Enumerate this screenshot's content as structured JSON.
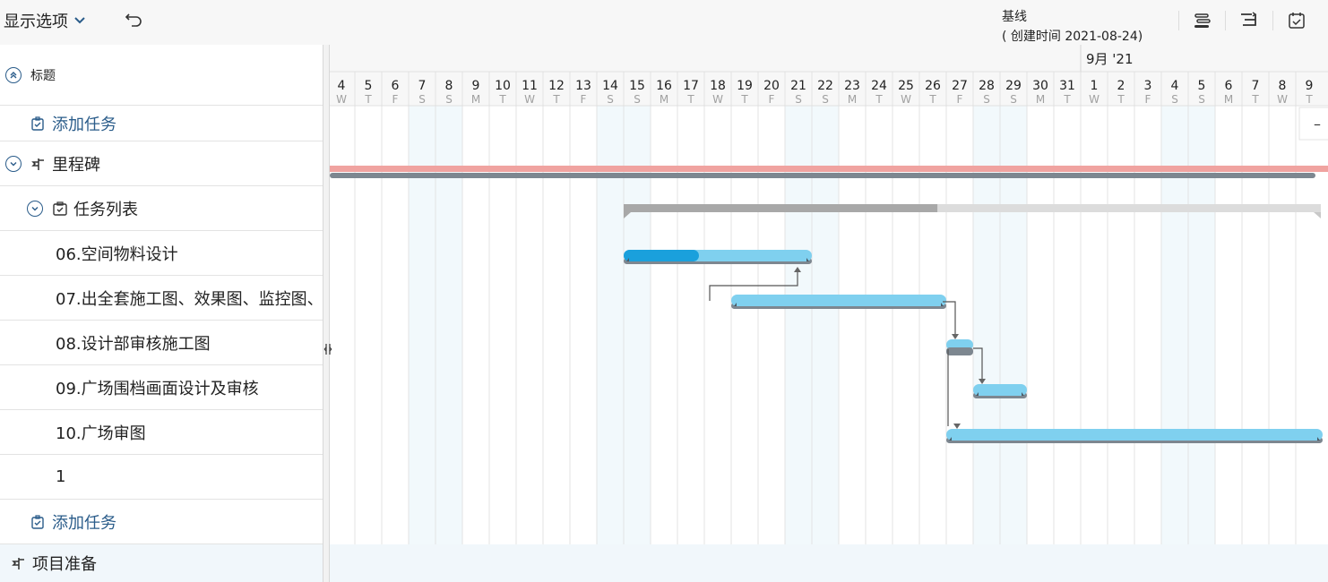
{
  "toolbar": {
    "display_options": "显示选项",
    "baseline_title": "基线",
    "baseline_subtitle": "( 创建时间 2021-08-24)"
  },
  "header": {
    "title_label": "标题",
    "month_label": "9月 '21"
  },
  "days": [
    {
      "d": "4",
      "w": "W"
    },
    {
      "d": "5",
      "w": "T"
    },
    {
      "d": "6",
      "w": "F"
    },
    {
      "d": "7",
      "w": "S"
    },
    {
      "d": "8",
      "w": "S"
    },
    {
      "d": "9",
      "w": "M"
    },
    {
      "d": "10",
      "w": "T"
    },
    {
      "d": "11",
      "w": "W"
    },
    {
      "d": "12",
      "w": "T"
    },
    {
      "d": "13",
      "w": "F"
    },
    {
      "d": "14",
      "w": "S"
    },
    {
      "d": "15",
      "w": "S"
    },
    {
      "d": "16",
      "w": "M"
    },
    {
      "d": "17",
      "w": "T"
    },
    {
      "d": "18",
      "w": "W"
    },
    {
      "d": "19",
      "w": "T"
    },
    {
      "d": "20",
      "w": "F"
    },
    {
      "d": "21",
      "w": "S"
    },
    {
      "d": "22",
      "w": "S"
    },
    {
      "d": "23",
      "w": "M"
    },
    {
      "d": "24",
      "w": "T"
    },
    {
      "d": "25",
      "w": "W"
    },
    {
      "d": "26",
      "w": "T"
    },
    {
      "d": "27",
      "w": "F"
    },
    {
      "d": "28",
      "w": "S"
    },
    {
      "d": "29",
      "w": "S"
    },
    {
      "d": "30",
      "w": "M"
    },
    {
      "d": "31",
      "w": "T"
    },
    {
      "d": "1",
      "w": "W"
    },
    {
      "d": "2",
      "w": "T"
    },
    {
      "d": "3",
      "w": "F"
    },
    {
      "d": "4",
      "w": "S"
    },
    {
      "d": "5",
      "w": "S"
    },
    {
      "d": "6",
      "w": "M"
    },
    {
      "d": "7",
      "w": "T"
    },
    {
      "d": "8",
      "w": "W"
    },
    {
      "d": "9",
      "w": "T"
    }
  ],
  "rows": {
    "add_task_1": "添加任务",
    "milestone": "里程碑",
    "task_list": "任务列表",
    "task_06": "06.空间物料设计",
    "task_07": "07.出全套施工图、效果图、监控图、",
    "task_08": "08.设计部审核施工图",
    "task_09": "09.广场围档画面设计及审核",
    "task_10": "10.广场审图",
    "task_1": "1",
    "add_task_2": "添加任务",
    "project_prep": "项目准备"
  },
  "colors": {
    "bar_light": "#7fd0ef",
    "bar_progress": "#1aa0dc",
    "baseline_bar": "#7d8790",
    "milestone_bar": "#f0a3a0",
    "summary_bar": "#a8a8a8",
    "weekend_fill": "#f2f9fc",
    "accent": "#2a5c8a"
  },
  "task_progress": {
    "task_06": 0.4,
    "task_list": 0.45
  }
}
